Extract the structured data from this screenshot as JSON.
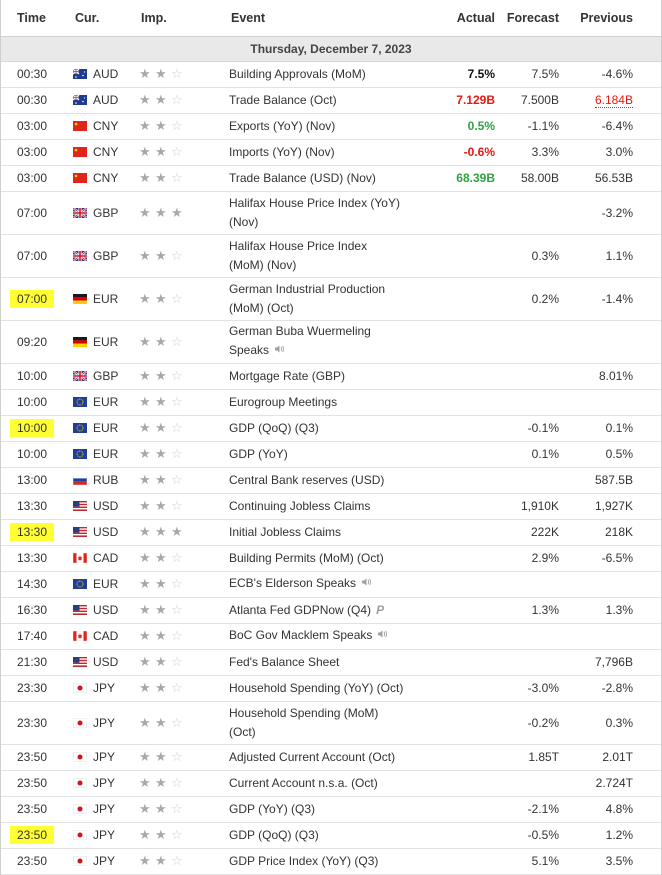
{
  "header": {
    "time": "Time",
    "cur": "Cur.",
    "imp": "Imp.",
    "event": "Event",
    "actual": "Actual",
    "forecast": "Forecast",
    "previous": "Previous"
  },
  "day": "Thursday, December 7, 2023",
  "colors": {
    "actual_up": "#2da341",
    "actual_down": "#e8170f",
    "highlight": "#ffff33",
    "day_bar": "#e9e9e9"
  },
  "rows": [
    {
      "time": "00:30",
      "hl": false,
      "flag": "au",
      "cur": "AUD",
      "stars": 2,
      "event": [
        "Building Approvals (MoM)"
      ],
      "icon": "",
      "actual": "7.5%",
      "actual_class": "neutral",
      "forecast": "7.5%",
      "previous": "-4.6%",
      "prev_class": ""
    },
    {
      "time": "00:30",
      "hl": false,
      "flag": "au",
      "cur": "AUD",
      "stars": 2,
      "event": [
        "Trade Balance (Oct)"
      ],
      "icon": "",
      "actual": "7.129B",
      "actual_class": "down",
      "forecast": "7.500B",
      "previous": "6.184B",
      "prev_class": "prev-down"
    },
    {
      "time": "03:00",
      "hl": false,
      "flag": "cn",
      "cur": "CNY",
      "stars": 2,
      "event": [
        "Exports (YoY) (Nov)"
      ],
      "icon": "",
      "actual": "0.5%",
      "actual_class": "up",
      "forecast": "-1.1%",
      "previous": "-6.4%",
      "prev_class": ""
    },
    {
      "time": "03:00",
      "hl": false,
      "flag": "cn",
      "cur": "CNY",
      "stars": 2,
      "event": [
        "Imports (YoY) (Nov)"
      ],
      "icon": "",
      "actual": "-0.6%",
      "actual_class": "down",
      "forecast": "3.3%",
      "previous": "3.0%",
      "prev_class": ""
    },
    {
      "time": "03:00",
      "hl": false,
      "flag": "cn",
      "cur": "CNY",
      "stars": 2,
      "event": [
        "Trade Balance (USD) (Nov)"
      ],
      "icon": "",
      "actual": "68.39B",
      "actual_class": "up",
      "forecast": "58.00B",
      "previous": "56.53B",
      "prev_class": ""
    },
    {
      "time": "07:00",
      "hl": false,
      "flag": "gb",
      "cur": "GBP",
      "stars": 3,
      "event": [
        "Halifax House Price Index (YoY)",
        "(Nov)"
      ],
      "icon": "",
      "actual": "",
      "actual_class": "neutral",
      "forecast": "",
      "previous": "-3.2%",
      "prev_class": ""
    },
    {
      "time": "07:00",
      "hl": false,
      "flag": "gb",
      "cur": "GBP",
      "stars": 2,
      "event": [
        "Halifax House Price Index",
        "(MoM) (Nov)"
      ],
      "icon": "",
      "actual": "",
      "actual_class": "neutral",
      "forecast": "0.3%",
      "previous": "1.1%",
      "prev_class": ""
    },
    {
      "time": "07:00",
      "hl": true,
      "flag": "de",
      "cur": "EUR",
      "stars": 2,
      "event": [
        "German Industrial Production",
        "(MoM) (Oct)"
      ],
      "icon": "",
      "actual": "",
      "actual_class": "neutral",
      "forecast": "0.2%",
      "previous": "-1.4%",
      "prev_class": ""
    },
    {
      "time": "09:20",
      "hl": false,
      "flag": "de",
      "cur": "EUR",
      "stars": 2,
      "event": [
        "German Buba Wuermeling",
        "Speaks"
      ],
      "icon": "speaker",
      "actual": "",
      "actual_class": "neutral",
      "forecast": "",
      "previous": "",
      "prev_class": ""
    },
    {
      "time": "10:00",
      "hl": false,
      "flag": "gb",
      "cur": "GBP",
      "stars": 2,
      "event": [
        "Mortgage Rate (GBP)"
      ],
      "icon": "",
      "actual": "",
      "actual_class": "neutral",
      "forecast": "",
      "previous": "8.01%",
      "prev_class": ""
    },
    {
      "time": "10:00",
      "hl": false,
      "flag": "eu",
      "cur": "EUR",
      "stars": 2,
      "event": [
        "Eurogroup Meetings"
      ],
      "icon": "",
      "actual": "",
      "actual_class": "neutral",
      "forecast": "",
      "previous": "",
      "prev_class": ""
    },
    {
      "time": "10:00",
      "hl": true,
      "flag": "eu",
      "cur": "EUR",
      "stars": 2,
      "event": [
        "GDP (QoQ) (Q3)"
      ],
      "icon": "",
      "actual": "",
      "actual_class": "neutral",
      "forecast": "-0.1%",
      "previous": "0.1%",
      "prev_class": ""
    },
    {
      "time": "10:00",
      "hl": false,
      "flag": "eu",
      "cur": "EUR",
      "stars": 2,
      "event": [
        "GDP (YoY)"
      ],
      "icon": "",
      "actual": "",
      "actual_class": "neutral",
      "forecast": "0.1%",
      "previous": "0.5%",
      "prev_class": ""
    },
    {
      "time": "13:00",
      "hl": false,
      "flag": "ru",
      "cur": "RUB",
      "stars": 2,
      "event": [
        "Central Bank reserves (USD)"
      ],
      "icon": "",
      "actual": "",
      "actual_class": "neutral",
      "forecast": "",
      "previous": "587.5B",
      "prev_class": ""
    },
    {
      "time": "13:30",
      "hl": false,
      "flag": "us",
      "cur": "USD",
      "stars": 2,
      "event": [
        "Continuing Jobless Claims"
      ],
      "icon": "",
      "actual": "",
      "actual_class": "neutral",
      "forecast": "1,910K",
      "previous": "1,927K",
      "prev_class": ""
    },
    {
      "time": "13:30",
      "hl": true,
      "flag": "us",
      "cur": "USD",
      "stars": 3,
      "event": [
        "Initial Jobless Claims"
      ],
      "icon": "",
      "actual": "",
      "actual_class": "neutral",
      "forecast": "222K",
      "previous": "218K",
      "prev_class": ""
    },
    {
      "time": "13:30",
      "hl": false,
      "flag": "ca",
      "cur": "CAD",
      "stars": 2,
      "event": [
        "Building Permits (MoM) (Oct)"
      ],
      "icon": "",
      "actual": "",
      "actual_class": "neutral",
      "forecast": "2.9%",
      "previous": "-6.5%",
      "prev_class": ""
    },
    {
      "time": "14:30",
      "hl": false,
      "flag": "eu",
      "cur": "EUR",
      "stars": 2,
      "event": [
        "ECB's Elderson Speaks"
      ],
      "icon": "speaker",
      "actual": "",
      "actual_class": "neutral",
      "forecast": "",
      "previous": "",
      "prev_class": ""
    },
    {
      "time": "16:30",
      "hl": false,
      "flag": "us",
      "cur": "USD",
      "stars": 2,
      "event": [
        "Atlanta Fed GDPNow (Q4)"
      ],
      "icon": "p",
      "actual": "",
      "actual_class": "neutral",
      "forecast": "1.3%",
      "previous": "1.3%",
      "prev_class": ""
    },
    {
      "time": "17:40",
      "hl": false,
      "flag": "ca",
      "cur": "CAD",
      "stars": 2,
      "event": [
        "BoC Gov Macklem Speaks"
      ],
      "icon": "speaker",
      "actual": "",
      "actual_class": "neutral",
      "forecast": "",
      "previous": "",
      "prev_class": ""
    },
    {
      "time": "21:30",
      "hl": false,
      "flag": "us",
      "cur": "USD",
      "stars": 2,
      "event": [
        "Fed's Balance Sheet"
      ],
      "icon": "",
      "actual": "",
      "actual_class": "neutral",
      "forecast": "",
      "previous": "7,796B",
      "prev_class": ""
    },
    {
      "time": "23:30",
      "hl": false,
      "flag": "jp",
      "cur": "JPY",
      "stars": 2,
      "event": [
        "Household Spending (YoY) (Oct)"
      ],
      "icon": "",
      "actual": "",
      "actual_class": "neutral",
      "forecast": "-3.0%",
      "previous": "-2.8%",
      "prev_class": ""
    },
    {
      "time": "23:30",
      "hl": false,
      "flag": "jp",
      "cur": "JPY",
      "stars": 2,
      "event": [
        "Household Spending (MoM)",
        "(Oct)"
      ],
      "icon": "",
      "actual": "",
      "actual_class": "neutral",
      "forecast": "-0.2%",
      "previous": "0.3%",
      "prev_class": ""
    },
    {
      "time": "23:50",
      "hl": false,
      "flag": "jp",
      "cur": "JPY",
      "stars": 2,
      "event": [
        "Adjusted Current Account (Oct)"
      ],
      "icon": "",
      "actual": "",
      "actual_class": "neutral",
      "forecast": "1.85T",
      "previous": "2.01T",
      "prev_class": ""
    },
    {
      "time": "23:50",
      "hl": false,
      "flag": "jp",
      "cur": "JPY",
      "stars": 2,
      "event": [
        "Current Account n.s.a. (Oct)"
      ],
      "icon": "",
      "actual": "",
      "actual_class": "neutral",
      "forecast": "",
      "previous": "2.724T",
      "prev_class": ""
    },
    {
      "time": "23:50",
      "hl": false,
      "flag": "jp",
      "cur": "JPY",
      "stars": 2,
      "event": [
        "GDP (YoY) (Q3)"
      ],
      "icon": "",
      "actual": "",
      "actual_class": "neutral",
      "forecast": "-2.1%",
      "previous": "4.8%",
      "prev_class": ""
    },
    {
      "time": "23:50",
      "hl": true,
      "flag": "jp",
      "cur": "JPY",
      "stars": 2,
      "event": [
        "GDP (QoQ) (Q3)"
      ],
      "icon": "",
      "actual": "",
      "actual_class": "neutral",
      "forecast": "-0.5%",
      "previous": "1.2%",
      "prev_class": ""
    },
    {
      "time": "23:50",
      "hl": false,
      "flag": "jp",
      "cur": "JPY",
      "stars": 2,
      "event": [
        "GDP Price Index (YoY) (Q3)"
      ],
      "icon": "",
      "actual": "",
      "actual_class": "neutral",
      "forecast": "5.1%",
      "previous": "3.5%",
      "prev_class": ""
    }
  ]
}
